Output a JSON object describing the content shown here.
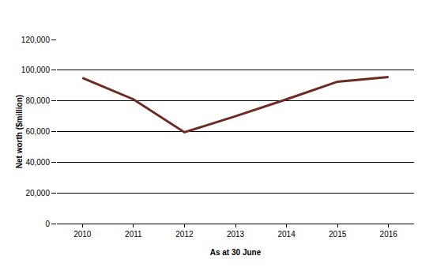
{
  "chart_data": {
    "type": "line",
    "x_label": "As at 30 June",
    "y_label": "Net worth ($million)",
    "categories": [
      "2010",
      "2011",
      "2012",
      "2013",
      "2014",
      "2015",
      "2016"
    ],
    "values": [
      95000,
      81000,
      59500,
      70000,
      81000,
      92500,
      95500
    ],
    "color": "#6b2a22",
    "ylim": [
      0,
      120000
    ],
    "yticks": [
      0,
      {
        "value": 20000,
        "label": "20,000"
      },
      {
        "value": 40000,
        "label": "40,000"
      },
      {
        "value": 60000,
        "label": "60,000"
      },
      {
        "value": 80000,
        "label": "80,000"
      },
      {
        "value": 100000,
        "label": "100,000"
      },
      {
        "value": 120000,
        "label": "120,000"
      }
    ],
    "grid": true
  }
}
